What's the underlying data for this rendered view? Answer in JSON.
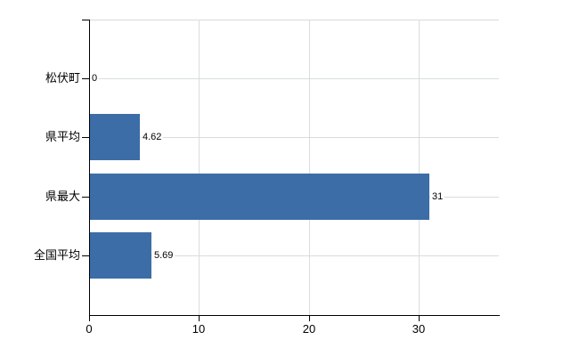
{
  "chart_data": {
    "type": "bar",
    "orientation": "horizontal",
    "title": "",
    "categories": [
      "松伏町",
      "県平均",
      "県最大",
      "全国平均"
    ],
    "values": [
      0,
      4.62,
      31,
      5.69
    ],
    "value_labels": [
      "0",
      "4.62",
      "31",
      "5.69"
    ],
    "x_ticks": [
      0,
      10,
      20,
      30
    ],
    "x_tick_labels": [
      "0",
      "10",
      "20",
      "30"
    ],
    "xlim": [
      0,
      37.3
    ],
    "grid": true,
    "legend": false,
    "colors": {
      "bar": "#3d6da7",
      "axis": "#000000",
      "vertical_grid": "#dcdcdc",
      "horizontal_grid": "#d6ded6",
      "plot_top_border": "#d9d9d9",
      "text": "#000000",
      "background": "#ffffff"
    }
  }
}
